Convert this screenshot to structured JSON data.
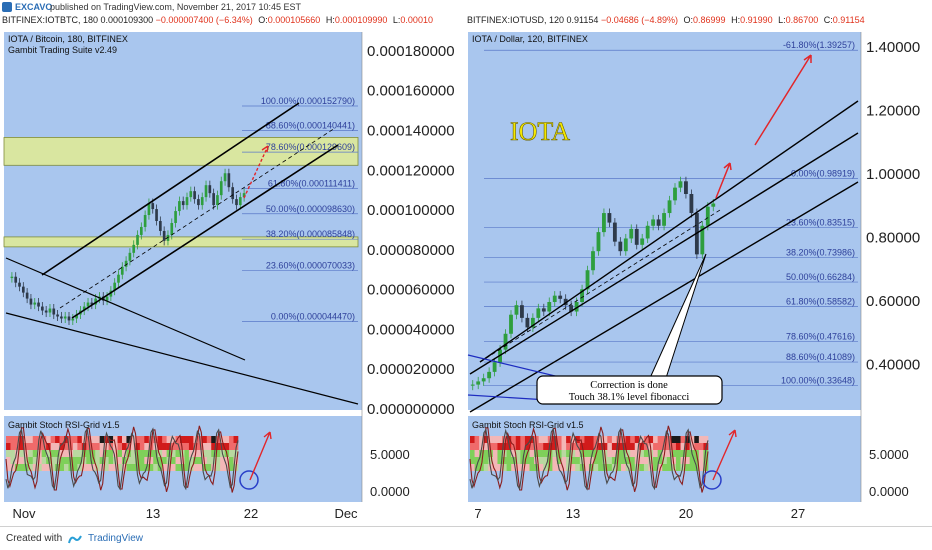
{
  "header": {
    "author": "EXCAVO",
    "published": "published on TradingView.com, November 21, 2017 10:45 EST",
    "left_quote": {
      "symbol": "BITFINEX:IOTBTC, 180",
      "price": "0.000109300",
      "change": "−0.000007400 (−6.34%)",
      "o_label": "O:",
      "o": "0.000105660",
      "h_label": "H:",
      "h": "0.000109990",
      "l_label": "L:",
      "l": "0.00010"
    },
    "right_quote": {
      "symbol": "BITFINEX:IOTUSD, 120",
      "price": "0.91154",
      "change": "−0.04686 (−4.89%)",
      "o_label": "O:",
      "o": "0.86999",
      "h_label": "H:",
      "h": "0.91990",
      "l_label": "L:",
      "l": "0.86700",
      "c_label": "C:",
      "c": "0.91154"
    }
  },
  "footer": {
    "created": "Created with",
    "brand": "TradingView"
  },
  "colors": {
    "pane_bg": "#a9c6ee",
    "fib_line": "#5a78c8",
    "fib_text": "#2d3f9a",
    "zone": "#d9e6a0",
    "arrow": "#e2262a",
    "candle_up": "#2e9e3e",
    "candle_down": "#2e3a4a",
    "iota_text": "#f5e800",
    "circle": "#2a3fc8"
  },
  "chart_data": [
    {
      "type": "candlestick",
      "title": "IOTA / Bitcoin, 180, BITFINEX",
      "subtitle": "Gambit Trading Suite v2.49",
      "y_axis": [
        "0.000180000",
        "0.000160000",
        "0.000140000",
        "0.000120000",
        "0.000100000",
        "0.000080000",
        "0.000060000",
        "0.000040000",
        "0.000020000",
        "0.000000000"
      ],
      "ylim": [
        0.0,
        0.00019
      ],
      "x_labels": [
        "Nov",
        "13",
        "22",
        "Dec"
      ],
      "fib_levels": [
        {
          "label": "100.00%(0.000152790)",
          "y": 0.00015279
        },
        {
          "label": "88.60%(0.000140441)",
          "y": 0.000140441
        },
        {
          "label": "78.60%(0.000129609)",
          "y": 0.000129609
        },
        {
          "label": "61.80%(0.000111411)",
          "y": 0.000111411
        },
        {
          "label": "50.00%(0.000098630)",
          "y": 9.863e-05
        },
        {
          "label": "38.20%(0.000085848)",
          "y": 8.5848e-05
        },
        {
          "label": "23.60%(0.000070033)",
          "y": 7.0033e-05
        },
        {
          "label": "0.00%(0.000044470)",
          "y": 4.447e-05
        }
      ],
      "zones": [
        [
          0.000123,
          0.000137
        ],
        [
          8.2e-05,
          8.7e-05
        ]
      ],
      "closes": [
        6.7e-05,
        6.4e-05,
        6.2e-05,
        5.9e-05,
        5.6e-05,
        5.3e-05,
        5.4e-05,
        5.2e-05,
        5e-05,
        4.9e-05,
        5.1e-05,
        4.8e-05,
        4.7e-05,
        4.6e-05,
        4.7e-05,
        4.5e-05,
        4.6e-05,
        4.8e-05,
        5e-05,
        5.2e-05,
        5.4e-05,
        5.3e-05,
        5.6e-05,
        5.7e-05,
        5.5e-05,
        5.7e-05,
        6e-05,
        6.4e-05,
        6.8e-05,
        7.2e-05,
        7.5e-05,
        7.9e-05,
        8.3e-05,
        8.8e-05,
        9.2e-05,
        9.8e-05,
        0.000104,
        0.000101,
        9.5e-05,
        9e-05,
        8.5e-05,
        8.8e-05,
        9.4e-05,
        0.0001,
        0.000105,
        0.000103,
        0.000107,
        0.00011,
        0.000106,
        0.000103,
        0.000107,
        0.000113,
        0.000109,
        0.000103,
        0.000108,
        0.000115,
        0.000119,
        0.000112,
        0.000106,
        0.000103,
        0.000107,
        0.000109
      ],
      "indicator": {
        "name": "Gambit Stoch RSI-Grid v1.5",
        "y_axis": [
          "5.0000",
          "0.0000"
        ]
      }
    },
    {
      "type": "candlestick",
      "title": "IOTA / Dollar, 120, BITFINEX",
      "annotation_main": "IOTA",
      "y_axis": [
        "1.40000",
        "1.20000",
        "1.00000",
        "0.80000",
        "0.60000",
        "0.40000"
      ],
      "ylim": [
        0.26,
        1.45
      ],
      "x_labels": [
        "7",
        "13",
        "20",
        "27"
      ],
      "fib_levels": [
        {
          "label": "-61.80%(1.39257)",
          "y": 1.39257
        },
        {
          "label": "0.00%(0.98919)",
          "y": 0.98919
        },
        {
          "label": "23.60%(0.83515)",
          "y": 0.83515
        },
        {
          "label": "38.20%(0.73986)",
          "y": 0.73986
        },
        {
          "label": "50.00%(0.66284)",
          "y": 0.66284
        },
        {
          "label": "61.80%(0.58582)",
          "y": 0.58582
        },
        {
          "label": "78.60%(0.47616)",
          "y": 0.47616
        },
        {
          "label": "88.60%(0.41089)",
          "y": 0.41089
        },
        {
          "label": "100.00%(0.33648)",
          "y": 0.33648
        }
      ],
      "callout": [
        "Correction is done",
        "Touch 38.1% level fibonacci"
      ],
      "closes": [
        0.34,
        0.35,
        0.36,
        0.38,
        0.41,
        0.45,
        0.5,
        0.56,
        0.59,
        0.55,
        0.52,
        0.55,
        0.58,
        0.57,
        0.6,
        0.62,
        0.61,
        0.59,
        0.57,
        0.6,
        0.64,
        0.7,
        0.76,
        0.82,
        0.88,
        0.85,
        0.79,
        0.76,
        0.8,
        0.83,
        0.78,
        0.8,
        0.84,
        0.86,
        0.84,
        0.88,
        0.92,
        0.96,
        0.98,
        0.94,
        0.88,
        0.75,
        0.84,
        0.9,
        0.91
      ],
      "indicator": {
        "name": "Gambit Stoch RSI-Grid v1.5",
        "y_axis": [
          "5.0000",
          "0.0000"
        ]
      }
    }
  ]
}
